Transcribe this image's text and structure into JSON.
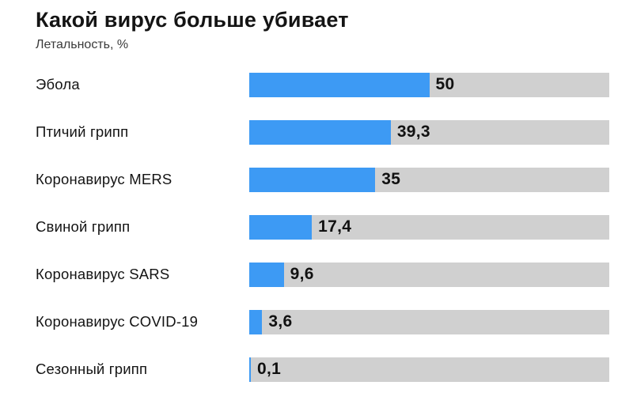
{
  "header": {
    "title": "Какой вирус больше убивает",
    "subtitle": "Летальность, %"
  },
  "colors": {
    "bar_fill": "#3d9af4",
    "bar_track": "#d0d0d0",
    "text": "#141414"
  },
  "chart_data": {
    "type": "bar",
    "orientation": "horizontal",
    "title": "Какой вирус больше убивает",
    "xlabel": "Летальность, %",
    "xlim": [
      0,
      100
    ],
    "grid": false,
    "legend": false,
    "categories": [
      "Эбола",
      "Птичий грипп",
      "Коронавирус MERS",
      "Свиной грипп",
      "Коронавирус SARS",
      "Коронавирус COVID-19",
      "Сезонный грипп"
    ],
    "values": [
      50,
      39.3,
      35,
      17.4,
      9.6,
      3.6,
      0.1
    ],
    "value_labels": [
      "50",
      "39,3",
      "35",
      "17,4",
      "9,6",
      "3,6",
      "0,1"
    ]
  }
}
